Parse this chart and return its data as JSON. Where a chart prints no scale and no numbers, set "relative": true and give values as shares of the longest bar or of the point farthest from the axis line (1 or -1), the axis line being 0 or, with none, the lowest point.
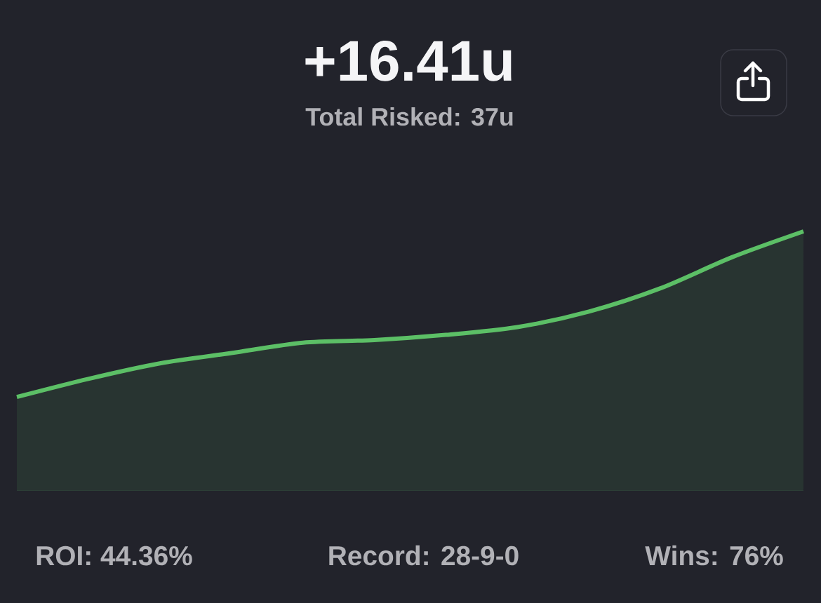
{
  "chart_data": {
    "type": "area",
    "title": "+16.41u",
    "subtitle": "Total Risked: 37u",
    "categories": [
      null,
      null,
      null,
      null,
      null,
      null,
      null,
      null,
      null,
      null,
      null,
      null
    ],
    "relative": true,
    "color": "#5cbf66",
    "values": [
      0.36,
      0.43,
      0.49,
      0.53,
      0.57,
      0.58,
      0.6,
      0.63,
      0.69,
      0.78,
      0.9,
      1
    ],
    "annotations": [
      "ROI: 44.36%",
      "Record: 28-9-0",
      "Wins: 76%"
    ]
  }
}
